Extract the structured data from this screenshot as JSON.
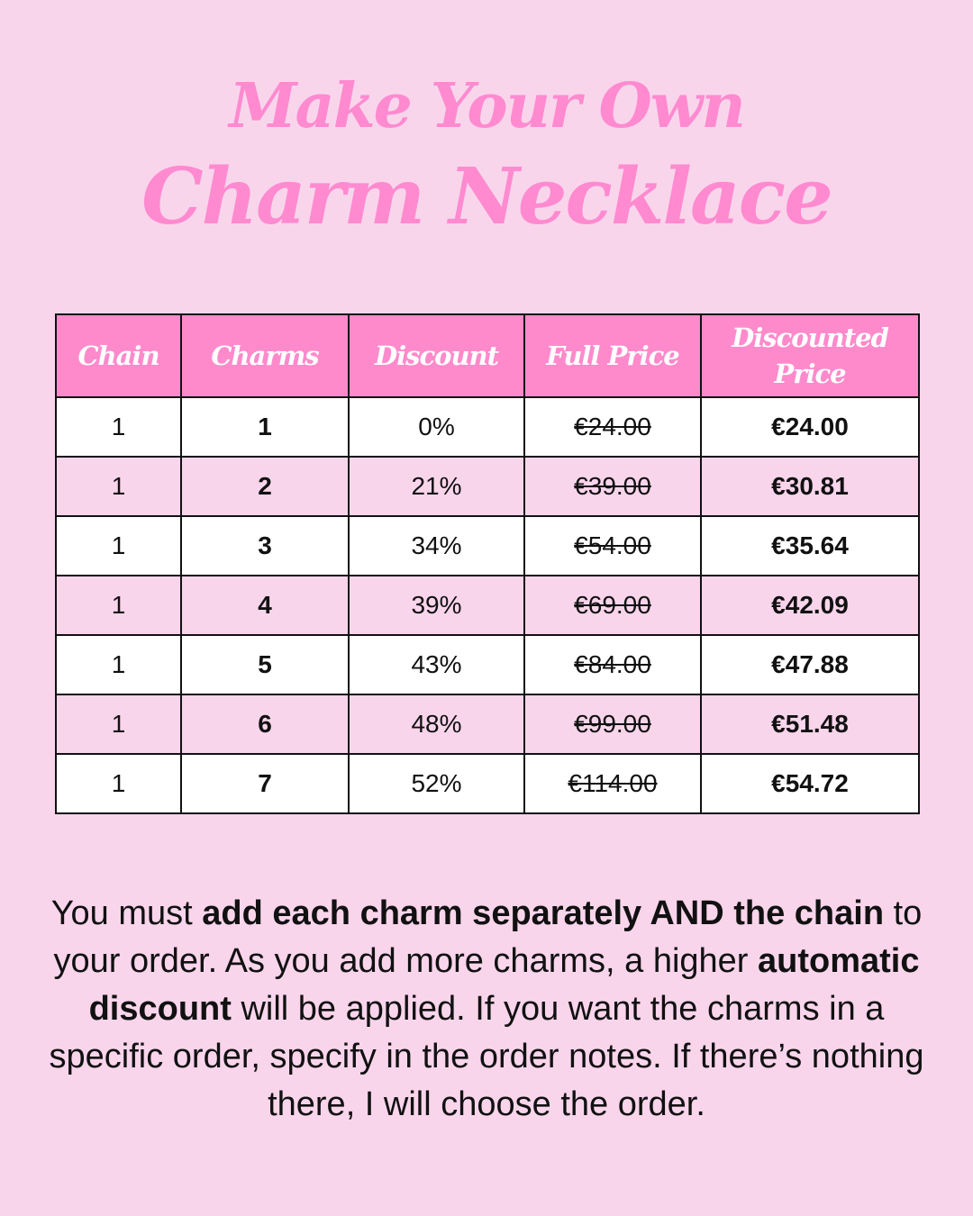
{
  "title": {
    "line1": "Make Your Own",
    "line2": "Charm Necklace"
  },
  "colors": {
    "background": "#f9d5ec",
    "accent": "#ff8acb",
    "title": "#ff8ad0"
  },
  "table": {
    "headers": [
      "Chain",
      "Charms",
      "Discount",
      "Full Price",
      "Discounted Price"
    ],
    "rows": [
      {
        "chain": "1",
        "charms": "1",
        "discount": "0%",
        "full_price": "€24.00",
        "discounted_price": "€24.00"
      },
      {
        "chain": "1",
        "charms": "2",
        "discount": "21%",
        "full_price": "€39.00",
        "discounted_price": "€30.81"
      },
      {
        "chain": "1",
        "charms": "3",
        "discount": "34%",
        "full_price": "€54.00",
        "discounted_price": "€35.64"
      },
      {
        "chain": "1",
        "charms": "4",
        "discount": "39%",
        "full_price": "€69.00",
        "discounted_price": "€42.09"
      },
      {
        "chain": "1",
        "charms": "5",
        "discount": "43%",
        "full_price": "€84.00",
        "discounted_price": "€47.88"
      },
      {
        "chain": "1",
        "charms": "6",
        "discount": "48%",
        "full_price": "€99.00",
        "discounted_price": "€51.48"
      },
      {
        "chain": "1",
        "charms": "7",
        "discount": "52%",
        "full_price": "€114.00",
        "discounted_price": "€54.72"
      }
    ]
  },
  "note": {
    "p1": "You must ",
    "b1": "add each charm separately AND the chain",
    "p2": " to your order. As you add more charms, a higher ",
    "b2": "automatic discount",
    "p3": " will be applied. If you want the charms in a specific order, specify in the order notes. If there’s nothing there, I will choose the order."
  }
}
